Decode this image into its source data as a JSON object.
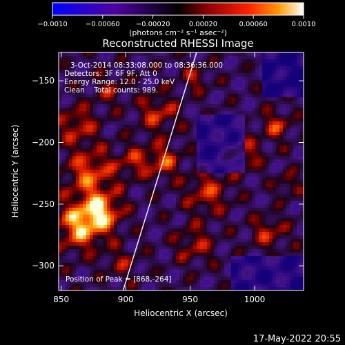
{
  "chart_data": {
    "type": "heatmap",
    "title": "Reconstructed RHESSI Image",
    "xlabel": "Heliocentric X (arcsec)",
    "ylabel": "Heliocentric Y (arcsec)",
    "xlim": [
      848,
      1038
    ],
    "ylim": [
      -320,
      -127
    ],
    "x_ticks": [
      850,
      900,
      950,
      1000
    ],
    "y_ticks": [
      -150,
      -200,
      -250,
      -300
    ],
    "x_tick_labels": [
      "850",
      "900",
      "950",
      "1000"
    ],
    "y_tick_labels": [
      "−150",
      "−200",
      "−250",
      "−300"
    ],
    "colorbar": {
      "range": [
        -0.001,
        0.001
      ],
      "ticks": [
        -0.001,
        -0.0006,
        -0.0002,
        0.0002,
        0.0006,
        0.001
      ],
      "tick_labels": [
        "−0.0010",
        "−0.00060",
        "−0.00020",
        "0.00020",
        "0.00060",
        "0.0010"
      ],
      "unit_label": "(photons cm⁻² s⁻¹ asec⁻²)",
      "colors": [
        "#0000ff",
        "#5000a0",
        "#000000",
        "#900000",
        "#ff2000",
        "#ff9900",
        "#ffffff"
      ]
    },
    "annotations": [
      "3-Oct-2014 08:33:08.000 to 08:36:36.000",
      "Detectors: 3F 6F 9F, Att 0",
      "Energy Range: 12.0 - 25.0 keV",
      "Clean    Total counts: 989."
    ],
    "peak_label": "Position of Peak = [868,-264]",
    "peak": [
      868,
      -264
    ],
    "limb_line": [
      [
        898,
        -320
      ],
      [
        955,
        -127
      ]
    ]
  },
  "footer": {
    "date": "17-May-2022 20:55"
  }
}
